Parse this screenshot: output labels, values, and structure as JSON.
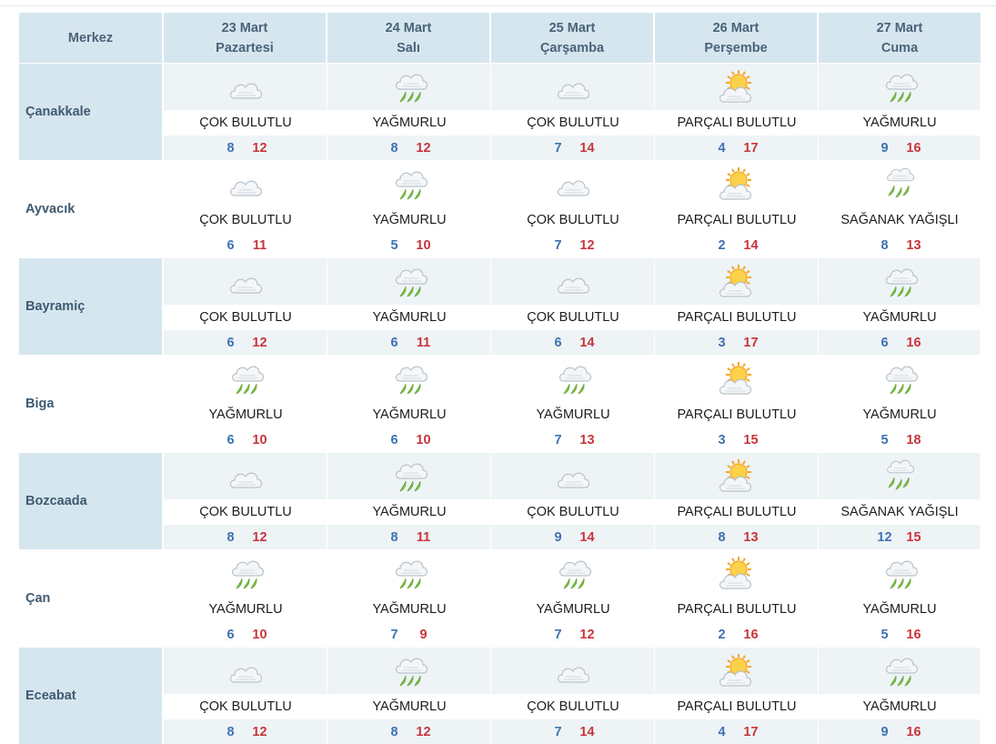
{
  "header": {
    "center_label": "Merkez",
    "days": [
      {
        "date": "23 Mart",
        "weekday": "Pazartesi"
      },
      {
        "date": "24 Mart",
        "weekday": "Salı"
      },
      {
        "date": "25 Mart",
        "weekday": "Çarşamba"
      },
      {
        "date": "26 Mart",
        "weekday": "Perşembe"
      },
      {
        "date": "27 Mart",
        "weekday": "Cuma"
      }
    ]
  },
  "rows": [
    {
      "city": "Çanakkale",
      "days": [
        {
          "icon": "cloudy-icon",
          "cond": "ÇOK BULUTLU",
          "min": "8",
          "max": "12"
        },
        {
          "icon": "rain-icon",
          "cond": "YAĞMURLU",
          "min": "8",
          "max": "12"
        },
        {
          "icon": "cloudy-icon",
          "cond": "ÇOK BULUTLU",
          "min": "7",
          "max": "14"
        },
        {
          "icon": "partly-cloudy-icon",
          "cond": "PARÇALI BULUTLU",
          "min": "4",
          "max": "17"
        },
        {
          "icon": "rain-icon",
          "cond": "YAĞMURLU",
          "min": "9",
          "max": "16"
        }
      ]
    },
    {
      "city": "Ayvacık",
      "days": [
        {
          "icon": "cloudy-icon",
          "cond": "ÇOK BULUTLU",
          "min": "6",
          "max": "11"
        },
        {
          "icon": "rain-icon",
          "cond": "YAĞMURLU",
          "min": "5",
          "max": "10"
        },
        {
          "icon": "cloudy-icon",
          "cond": "ÇOK BULUTLU",
          "min": "7",
          "max": "12"
        },
        {
          "icon": "partly-cloudy-icon",
          "cond": "PARÇALI BULUTLU",
          "min": "2",
          "max": "14"
        },
        {
          "icon": "showers-icon",
          "cond": "SAĞANAK YAĞIŞLI",
          "min": "8",
          "max": "13"
        }
      ]
    },
    {
      "city": "Bayramiç",
      "days": [
        {
          "icon": "cloudy-icon",
          "cond": "ÇOK BULUTLU",
          "min": "6",
          "max": "12"
        },
        {
          "icon": "rain-icon",
          "cond": "YAĞMURLU",
          "min": "6",
          "max": "11"
        },
        {
          "icon": "cloudy-icon",
          "cond": "ÇOK BULUTLU",
          "min": "6",
          "max": "14"
        },
        {
          "icon": "partly-cloudy-icon",
          "cond": "PARÇALI BULUTLU",
          "min": "3",
          "max": "17"
        },
        {
          "icon": "rain-icon",
          "cond": "YAĞMURLU",
          "min": "6",
          "max": "16"
        }
      ]
    },
    {
      "city": "Biga",
      "days": [
        {
          "icon": "rain-icon",
          "cond": "YAĞMURLU",
          "min": "6",
          "max": "10"
        },
        {
          "icon": "rain-icon",
          "cond": "YAĞMURLU",
          "min": "6",
          "max": "10"
        },
        {
          "icon": "rain-icon",
          "cond": "YAĞMURLU",
          "min": "7",
          "max": "13"
        },
        {
          "icon": "partly-cloudy-icon",
          "cond": "PARÇALI BULUTLU",
          "min": "3",
          "max": "15"
        },
        {
          "icon": "rain-icon",
          "cond": "YAĞMURLU",
          "min": "5",
          "max": "18"
        }
      ]
    },
    {
      "city": "Bozcaada",
      "days": [
        {
          "icon": "cloudy-icon",
          "cond": "ÇOK BULUTLU",
          "min": "8",
          "max": "12"
        },
        {
          "icon": "rain-icon",
          "cond": "YAĞMURLU",
          "min": "8",
          "max": "11"
        },
        {
          "icon": "cloudy-icon",
          "cond": "ÇOK BULUTLU",
          "min": "9",
          "max": "14"
        },
        {
          "icon": "partly-cloudy-icon",
          "cond": "PARÇALI BULUTLU",
          "min": "8",
          "max": "13"
        },
        {
          "icon": "showers-icon",
          "cond": "SAĞANAK YAĞIŞLI",
          "min": "12",
          "max": "15"
        }
      ]
    },
    {
      "city": "Çan",
      "days": [
        {
          "icon": "rain-icon",
          "cond": "YAĞMURLU",
          "min": "6",
          "max": "10"
        },
        {
          "icon": "rain-icon",
          "cond": "YAĞMURLU",
          "min": "7",
          "max": "9"
        },
        {
          "icon": "rain-icon",
          "cond": "YAĞMURLU",
          "min": "7",
          "max": "12"
        },
        {
          "icon": "partly-cloudy-icon",
          "cond": "PARÇALI BULUTLU",
          "min": "2",
          "max": "16"
        },
        {
          "icon": "rain-icon",
          "cond": "YAĞMURLU",
          "min": "5",
          "max": "16"
        }
      ]
    },
    {
      "city": "Eceabat",
      "days": [
        {
          "icon": "cloudy-icon",
          "cond": "ÇOK BULUTLU",
          "min": "8",
          "max": "12"
        },
        {
          "icon": "rain-icon",
          "cond": "YAĞMURLU",
          "min": "8",
          "max": "12"
        },
        {
          "icon": "cloudy-icon",
          "cond": "ÇOK BULUTLU",
          "min": "7",
          "max": "14"
        },
        {
          "icon": "partly-cloudy-icon",
          "cond": "PARÇALI BULUTLU",
          "min": "4",
          "max": "17"
        },
        {
          "icon": "rain-icon",
          "cond": "YAĞMURLU",
          "min": "9",
          "max": "16"
        }
      ]
    }
  ],
  "colors": {
    "header_bg": "#d6e6ef",
    "row_alt_bg": "#eef3f6",
    "min_temp": "#3d72b0",
    "max_temp": "#c9343b",
    "rain_drop": "#7cc242",
    "sun": "#f5a623"
  }
}
